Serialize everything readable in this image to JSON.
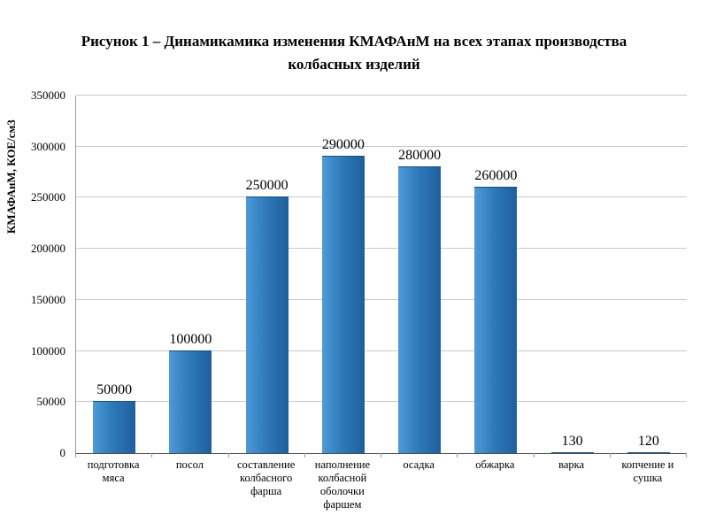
{
  "title": {
    "line1": "Рисунок 1 – Динамикамика изменения КМАФАнМ на всех этапах производства",
    "line2": "колбасных изделий"
  },
  "chart_data": {
    "type": "bar",
    "categories": [
      "подготовка мяса",
      "посол",
      "составление колбасного фарша",
      "наполнение колбасной оболочки фаршем",
      "осадка",
      "обжарка",
      "варка",
      "копчение и сушка"
    ],
    "values": [
      50000,
      100000,
      250000,
      290000,
      280000,
      260000,
      130,
      120
    ],
    "value_labels": [
      "50000",
      "100000",
      "250000",
      "290000",
      "280000",
      "260000",
      "130",
      "120"
    ],
    "title": "Рисунок 1 – Динамикамика изменения КМАФАнМ на всех этапах производства колбасных изделий",
    "xlabel": "",
    "ylabel": "КМАФАнМ, КОЕ/см3",
    "ylim": [
      0,
      350000
    ],
    "yticks": [
      0,
      50000,
      100000,
      150000,
      200000,
      250000,
      300000,
      350000
    ],
    "grid": true,
    "legend": "none",
    "bar_color": "#2f7ab9",
    "gridline_color": "#c9c9c9"
  }
}
